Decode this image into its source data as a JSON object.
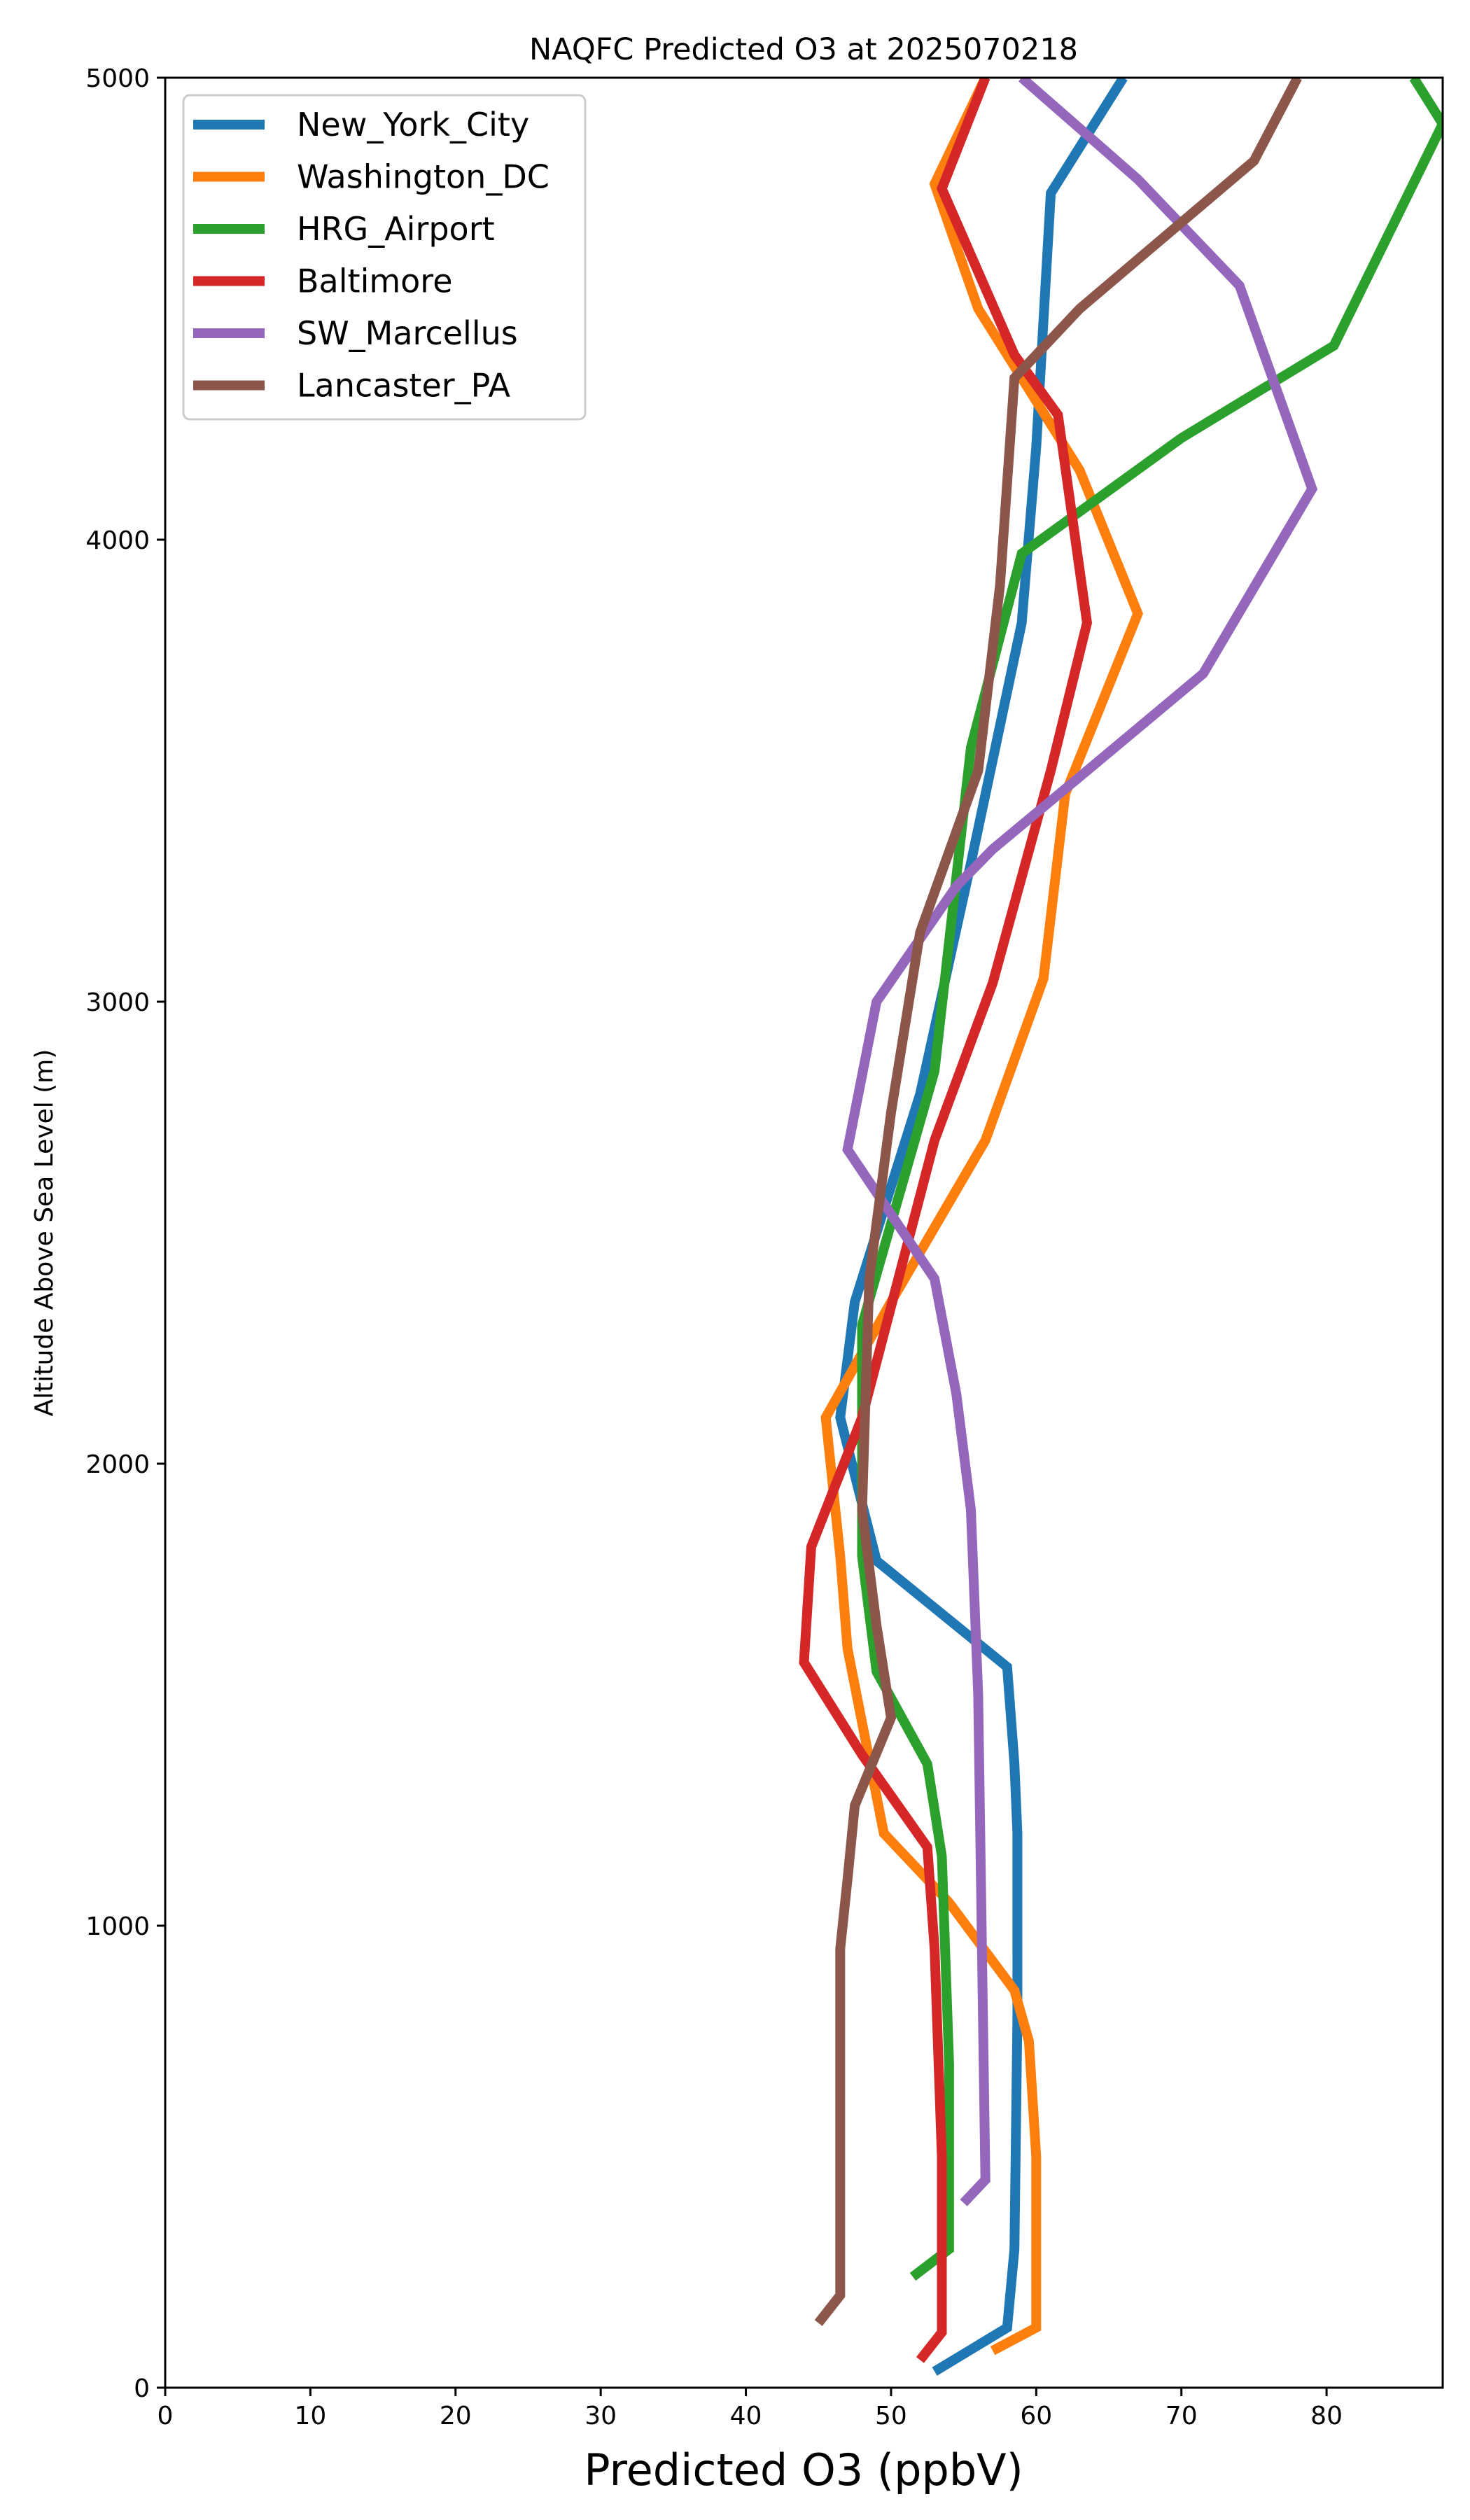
{
  "chart_data": {
    "type": "line",
    "title": "NAQFC Predicted O3 at 2025070218",
    "xlabel": "Predicted O3 (ppbV)",
    "ylabel": "Altitude Above Sea Level (m)",
    "xlim": [
      0,
      88
    ],
    "ylim": [
      0,
      5000
    ],
    "xticks": [
      0,
      10,
      20,
      30,
      40,
      50,
      60,
      70,
      80
    ],
    "yticks": [
      0,
      1000,
      2000,
      3000,
      4000,
      5000
    ],
    "xtick_labels": [
      "0",
      "10",
      "20",
      "30",
      "40",
      "50",
      "60",
      "70",
      "80"
    ],
    "ytick_labels": [
      "0",
      "1000",
      "2000",
      "3000",
      "4000",
      "5000"
    ],
    "grid": false,
    "legend_position": "top-left",
    "series": [
      {
        "name": "New_York_City",
        "color": "#1f77b4",
        "points": [
          [
            53,
            35
          ],
          [
            58,
            130
          ],
          [
            58.5,
            300
          ],
          [
            58.7,
            800
          ],
          [
            58.7,
            1200
          ],
          [
            58.5,
            1350
          ],
          [
            58,
            1560
          ],
          [
            49,
            1790
          ],
          [
            46.5,
            2100
          ],
          [
            47.5,
            2350
          ],
          [
            52,
            2800
          ],
          [
            55.5,
            3300
          ],
          [
            59,
            3820
          ],
          [
            60,
            4200
          ],
          [
            61,
            4750
          ],
          [
            66,
            5000
          ]
        ]
      },
      {
        "name": "Washington_DC",
        "color": "#ff7f0e",
        "points": [
          [
            57,
            80
          ],
          [
            60,
            130
          ],
          [
            60,
            350
          ],
          [
            60,
            500
          ],
          [
            59.5,
            750
          ],
          [
            58.5,
            860
          ],
          [
            54,
            1050
          ],
          [
            49.5,
            1200
          ],
          [
            47,
            1600
          ],
          [
            46.5,
            1800
          ],
          [
            45.5,
            2100
          ],
          [
            50,
            2350
          ],
          [
            56.5,
            2700
          ],
          [
            60.5,
            3050
          ],
          [
            62,
            3450
          ],
          [
            67,
            3840
          ],
          [
            63,
            4150
          ],
          [
            60,
            4300
          ],
          [
            56,
            4500
          ],
          [
            53,
            4770
          ],
          [
            56.5,
            5000
          ]
        ]
      },
      {
        "name": "HRG_Airport",
        "color": "#2ca02c",
        "points": [
          [
            51.5,
            240
          ],
          [
            54,
            300
          ],
          [
            54,
            700
          ],
          [
            53.5,
            1150
          ],
          [
            52.5,
            1350
          ],
          [
            49,
            1550
          ],
          [
            48,
            1800
          ],
          [
            48,
            2300
          ],
          [
            53,
            2850
          ],
          [
            55.5,
            3550
          ],
          [
            59,
            3970
          ],
          [
            70,
            4220
          ],
          [
            80.5,
            4420
          ],
          [
            88,
            4900
          ],
          [
            86,
            5000
          ]
        ]
      },
      {
        "name": "Baltimore",
        "color": "#d62728",
        "points": [
          [
            52,
            60
          ],
          [
            53.5,
            120
          ],
          [
            53.5,
            500
          ],
          [
            53,
            950
          ],
          [
            52.5,
            1170
          ],
          [
            48,
            1370
          ],
          [
            44,
            1570
          ],
          [
            44.5,
            1820
          ],
          [
            48,
            2100
          ],
          [
            50.5,
            2400
          ],
          [
            53,
            2700
          ],
          [
            57,
            3040
          ],
          [
            61,
            3500
          ],
          [
            63.5,
            3820
          ],
          [
            61.5,
            4270
          ],
          [
            58.5,
            4400
          ],
          [
            53.5,
            4760
          ],
          [
            56.5,
            5000
          ]
        ]
      },
      {
        "name": "SW_Marcellus",
        "color": "#9467bd",
        "points": [
          [
            55,
            400
          ],
          [
            56.5,
            450
          ],
          [
            56,
            1500
          ],
          [
            55.5,
            1900
          ],
          [
            54.5,
            2150
          ],
          [
            53,
            2400
          ],
          [
            47,
            2680
          ],
          [
            49,
            3000
          ],
          [
            54.5,
            3250
          ],
          [
            57,
            3330
          ],
          [
            63.5,
            3500
          ],
          [
            71.5,
            3710
          ],
          [
            79,
            4110
          ],
          [
            74,
            4550
          ],
          [
            67,
            4780
          ],
          [
            59,
            5000
          ]
        ]
      },
      {
        "name": "Lancaster_PA",
        "color": "#8c564b",
        "points": [
          [
            45,
            140
          ],
          [
            46.5,
            200
          ],
          [
            46.5,
            600
          ],
          [
            46.5,
            950
          ],
          [
            47,
            1100
          ],
          [
            47.5,
            1260
          ],
          [
            50,
            1450
          ],
          [
            49,
            1650
          ],
          [
            48,
            1900
          ],
          [
            48.5,
            2400
          ],
          [
            50,
            2760
          ],
          [
            52,
            3150
          ],
          [
            56,
            3500
          ],
          [
            57.5,
            3900
          ],
          [
            58.5,
            4350
          ],
          [
            63,
            4500
          ],
          [
            75,
            4820
          ],
          [
            78,
            5000
          ]
        ]
      }
    ]
  }
}
